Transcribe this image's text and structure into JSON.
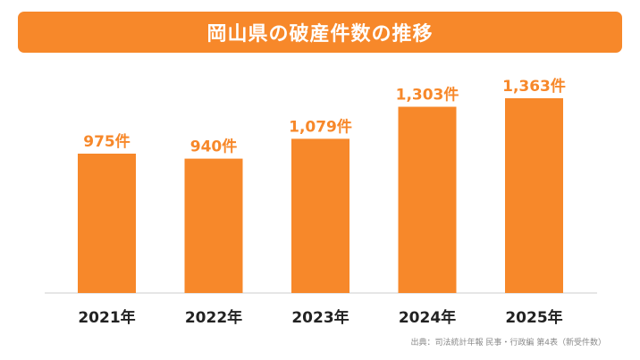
{
  "title": "岡山県の破産件数の推移",
  "source": "出典：司法統計年報 民事・行政編 第4表（新受件数）",
  "colors": {
    "accent": "#f7882a",
    "label": "#f7882a",
    "axis_text": "#222222",
    "baseline": "#cccccc"
  },
  "chart_data": {
    "type": "bar",
    "title": "岡山県の破産件数の推移",
    "categories": [
      "2021年",
      "2022年",
      "2023年",
      "2024年",
      "2025年"
    ],
    "values": [
      975,
      940,
      1079,
      1303,
      1363
    ],
    "data_labels": [
      "975件",
      "940件",
      "1,079件",
      "1,303件",
      "1,363件"
    ],
    "xlabel": "",
    "ylabel": "",
    "ylim": [
      0,
      1500
    ],
    "grid": false,
    "legend": "none"
  }
}
